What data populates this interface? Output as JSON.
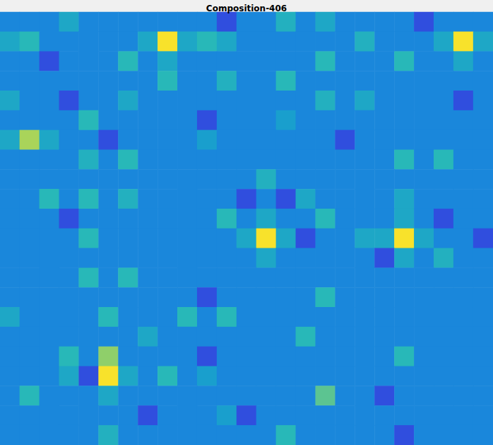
{
  "chart_data": {
    "type": "heatmap",
    "title": "Composition-406",
    "zlim": [
      0,
      1
    ],
    "tick_labels": false,
    "cells": [
      [
        0.35,
        0.35,
        0.35,
        0.5,
        0.35,
        0.35,
        0.35,
        0.35,
        0.35,
        0.35,
        0.35,
        0.15,
        0.35,
        0.35,
        0.55,
        0.35,
        0.5,
        0.35,
        0.35,
        0.35,
        0.35,
        0.15,
        0.35,
        0.35,
        0.35
      ],
      [
        0.5,
        0.6,
        0.35,
        0.35,
        0.35,
        0.35,
        0.35,
        0.5,
        1.0,
        0.5,
        0.6,
        0.5,
        0.35,
        0.35,
        0.35,
        0.35,
        0.35,
        0.35,
        0.55,
        0.35,
        0.35,
        0.35,
        0.5,
        1.0,
        0.5
      ],
      [
        0.35,
        0.35,
        0.15,
        0.35,
        0.35,
        0.35,
        0.6,
        0.35,
        0.5,
        0.35,
        0.35,
        0.35,
        0.35,
        0.35,
        0.35,
        0.35,
        0.6,
        0.35,
        0.35,
        0.35,
        0.6,
        0.35,
        0.35,
        0.5,
        0.35
      ],
      [
        0.35,
        0.35,
        0.35,
        0.35,
        0.35,
        0.35,
        0.35,
        0.35,
        0.6,
        0.35,
        0.35,
        0.55,
        0.35,
        0.35,
        0.6,
        0.35,
        0.35,
        0.35,
        0.35,
        0.35,
        0.35,
        0.35,
        0.35,
        0.35,
        0.35
      ],
      [
        0.5,
        0.35,
        0.35,
        0.15,
        0.35,
        0.35,
        0.5,
        0.35,
        0.35,
        0.35,
        0.35,
        0.35,
        0.35,
        0.35,
        0.35,
        0.35,
        0.55,
        0.35,
        0.5,
        0.35,
        0.35,
        0.35,
        0.35,
        0.15,
        0.35
      ],
      [
        0.35,
        0.35,
        0.35,
        0.35,
        0.6,
        0.35,
        0.35,
        0.35,
        0.35,
        0.35,
        0.15,
        0.35,
        0.35,
        0.35,
        0.45,
        0.35,
        0.35,
        0.35,
        0.35,
        0.35,
        0.35,
        0.35,
        0.35,
        0.35,
        0.35
      ],
      [
        0.5,
        0.85,
        0.5,
        0.35,
        0.35,
        0.15,
        0.35,
        0.35,
        0.35,
        0.35,
        0.45,
        0.35,
        0.35,
        0.35,
        0.35,
        0.35,
        0.35,
        0.15,
        0.35,
        0.35,
        0.35,
        0.35,
        0.35,
        0.35,
        0.35
      ],
      [
        0.35,
        0.35,
        0.35,
        0.35,
        0.55,
        0.35,
        0.6,
        0.35,
        0.35,
        0.35,
        0.35,
        0.35,
        0.35,
        0.35,
        0.35,
        0.35,
        0.35,
        0.35,
        0.35,
        0.35,
        0.6,
        0.35,
        0.6,
        0.35,
        0.35
      ],
      [
        0.35,
        0.35,
        0.35,
        0.35,
        0.35,
        0.35,
        0.35,
        0.35,
        0.35,
        0.35,
        0.35,
        0.35,
        0.35,
        0.55,
        0.35,
        0.35,
        0.35,
        0.35,
        0.35,
        0.35,
        0.35,
        0.35,
        0.35,
        0.35,
        0.35
      ],
      [
        0.35,
        0.35,
        0.6,
        0.35,
        0.6,
        0.35,
        0.55,
        0.35,
        0.35,
        0.35,
        0.35,
        0.35,
        0.15,
        0.35,
        0.15,
        0.5,
        0.35,
        0.35,
        0.35,
        0.35,
        0.5,
        0.35,
        0.35,
        0.35,
        0.35
      ],
      [
        0.35,
        0.35,
        0.35,
        0.15,
        0.35,
        0.35,
        0.35,
        0.35,
        0.35,
        0.35,
        0.35,
        0.6,
        0.35,
        0.5,
        0.35,
        0.35,
        0.6,
        0.35,
        0.35,
        0.35,
        0.5,
        0.35,
        0.15,
        0.35,
        0.35
      ],
      [
        0.35,
        0.35,
        0.35,
        0.35,
        0.6,
        0.35,
        0.35,
        0.35,
        0.35,
        0.35,
        0.35,
        0.35,
        0.5,
        1.0,
        0.5,
        0.15,
        0.35,
        0.35,
        0.5,
        0.5,
        1.0,
        0.5,
        0.35,
        0.35,
        0.15
      ],
      [
        0.35,
        0.35,
        0.35,
        0.35,
        0.35,
        0.35,
        0.35,
        0.35,
        0.35,
        0.35,
        0.35,
        0.35,
        0.35,
        0.5,
        0.35,
        0.35,
        0.35,
        0.35,
        0.35,
        0.15,
        0.5,
        0.35,
        0.55,
        0.35,
        0.35
      ],
      [
        0.35,
        0.35,
        0.35,
        0.35,
        0.6,
        0.35,
        0.6,
        0.35,
        0.35,
        0.35,
        0.35,
        0.35,
        0.35,
        0.35,
        0.35,
        0.35,
        0.35,
        0.35,
        0.35,
        0.35,
        0.35,
        0.35,
        0.35,
        0.35,
        0.35
      ],
      [
        0.35,
        0.35,
        0.35,
        0.35,
        0.35,
        0.35,
        0.35,
        0.35,
        0.35,
        0.35,
        0.15,
        0.35,
        0.35,
        0.35,
        0.35,
        0.35,
        0.6,
        0.35,
        0.35,
        0.35,
        0.35,
        0.35,
        0.35,
        0.35,
        0.35
      ],
      [
        0.5,
        0.35,
        0.35,
        0.35,
        0.35,
        0.6,
        0.35,
        0.35,
        0.35,
        0.6,
        0.35,
        0.6,
        0.35,
        0.35,
        0.35,
        0.35,
        0.35,
        0.35,
        0.35,
        0.35,
        0.35,
        0.35,
        0.35,
        0.35,
        0.35
      ],
      [
        0.35,
        0.35,
        0.35,
        0.35,
        0.35,
        0.35,
        0.35,
        0.5,
        0.35,
        0.35,
        0.35,
        0.35,
        0.35,
        0.35,
        0.35,
        0.6,
        0.35,
        0.35,
        0.35,
        0.35,
        0.35,
        0.35,
        0.35,
        0.35,
        0.35
      ],
      [
        0.35,
        0.35,
        0.35,
        0.6,
        0.35,
        0.8,
        0.35,
        0.35,
        0.35,
        0.35,
        0.15,
        0.35,
        0.35,
        0.35,
        0.35,
        0.35,
        0.35,
        0.35,
        0.35,
        0.35,
        0.6,
        0.35,
        0.35,
        0.35,
        0.35
      ],
      [
        0.35,
        0.35,
        0.35,
        0.5,
        0.15,
        1.0,
        0.5,
        0.35,
        0.6,
        0.35,
        0.45,
        0.35,
        0.35,
        0.35,
        0.35,
        0.35,
        0.35,
        0.35,
        0.35,
        0.35,
        0.35,
        0.35,
        0.35,
        0.35,
        0.35
      ],
      [
        0.35,
        0.6,
        0.35,
        0.35,
        0.35,
        0.5,
        0.35,
        0.35,
        0.35,
        0.35,
        0.35,
        0.35,
        0.35,
        0.35,
        0.35,
        0.35,
        0.7,
        0.35,
        0.35,
        0.15,
        0.35,
        0.35,
        0.35,
        0.35,
        0.35
      ],
      [
        0.35,
        0.35,
        0.35,
        0.35,
        0.35,
        0.35,
        0.35,
        0.15,
        0.35,
        0.35,
        0.35,
        0.45,
        0.15,
        0.35,
        0.35,
        0.35,
        0.35,
        0.35,
        0.35,
        0.35,
        0.35,
        0.35,
        0.35,
        0.35,
        0.35
      ],
      [
        0.35,
        0.35,
        0.35,
        0.35,
        0.35,
        0.55,
        0.35,
        0.35,
        0.35,
        0.35,
        0.35,
        0.35,
        0.35,
        0.35,
        0.6,
        0.35,
        0.35,
        0.35,
        0.35,
        0.35,
        0.15,
        0.35,
        0.35,
        0.35,
        0.35
      ]
    ]
  }
}
